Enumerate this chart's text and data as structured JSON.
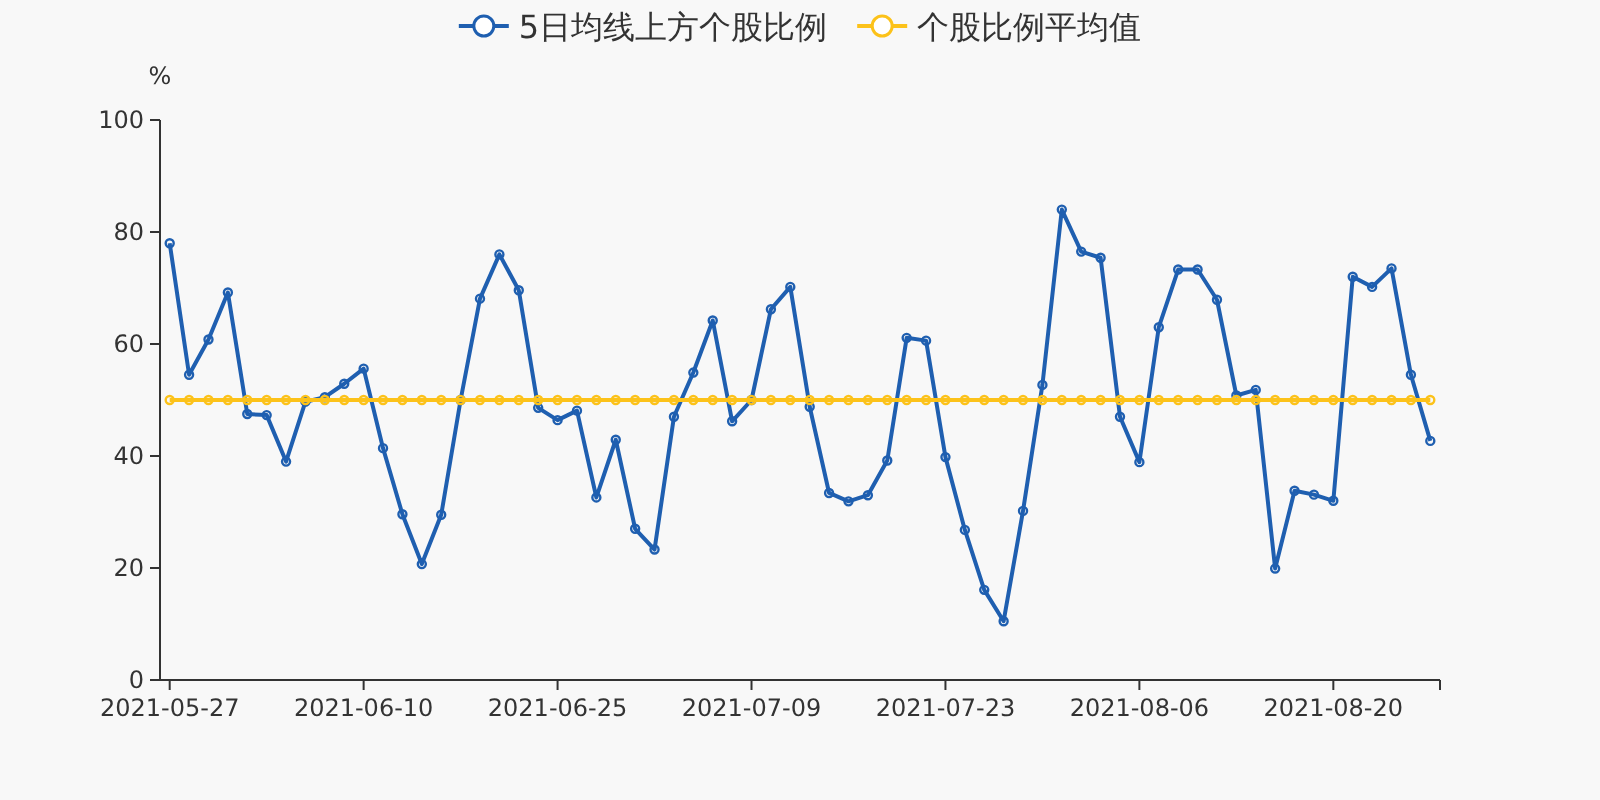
{
  "chart_data": {
    "type": "line",
    "ylabel": "%",
    "legend": "top",
    "marker": "circle",
    "grid": false,
    "categories": [
      "2021-05-27",
      null,
      null,
      null,
      null,
      null,
      null,
      null,
      null,
      null,
      "2021-06-10",
      null,
      null,
      null,
      null,
      null,
      null,
      null,
      null,
      null,
      "2021-06-25",
      null,
      null,
      null,
      null,
      null,
      null,
      null,
      null,
      null,
      "2021-07-09",
      null,
      null,
      null,
      null,
      null,
      null,
      null,
      null,
      null,
      "2021-07-23",
      null,
      null,
      null,
      null,
      null,
      null,
      null,
      null,
      null,
      "2021-08-06",
      null,
      null,
      null,
      null,
      null,
      null,
      null,
      null,
      null,
      "2021-08-20",
      null,
      null,
      null,
      null,
      null
    ],
    "ylim": [
      0,
      100
    ],
    "yticks": [
      0,
      20,
      40,
      60,
      80,
      100
    ],
    "series": [
      {
        "name": "5日均线上方个股比例",
        "color": "#1f5fb0",
        "values": [
          78.0,
          54.5,
          60.8,
          69.2,
          47.5,
          47.3,
          39.0,
          49.7,
          50.5,
          52.9,
          55.6,
          41.4,
          29.6,
          20.7,
          29.5,
          50.0,
          68.1,
          76.0,
          69.6,
          48.6,
          46.4,
          48.1,
          32.6,
          42.9,
          27.0,
          23.3,
          47.0,
          54.9,
          64.2,
          46.2,
          50.0,
          66.2,
          70.2,
          48.8,
          33.4,
          31.9,
          33.0,
          39.2,
          61.1,
          60.6,
          39.8,
          26.8,
          16.1,
          10.5,
          30.2,
          52.7,
          84.0,
          76.5,
          75.4,
          47.0,
          38.9,
          63.0,
          73.3,
          73.3,
          67.9,
          50.8,
          51.8,
          19.9,
          33.8,
          33.1,
          32.0,
          72.0,
          70.2,
          73.5,
          54.5,
          42.7
        ]
      },
      {
        "name": "个股比例平均值",
        "color": "#fcc21a",
        "values": [
          50,
          50,
          50,
          50,
          50,
          50,
          50,
          50,
          50,
          50,
          50,
          50,
          50,
          50,
          50,
          50,
          50,
          50,
          50,
          50,
          50,
          50,
          50,
          50,
          50,
          50,
          50,
          50,
          50,
          50,
          50,
          50,
          50,
          50,
          50,
          50,
          50,
          50,
          50,
          50,
          50,
          50,
          50,
          50,
          50,
          50,
          50,
          50,
          50,
          50,
          50,
          50,
          50,
          50,
          50,
          50,
          50,
          50,
          50,
          50,
          50,
          50,
          50,
          50,
          50,
          50
        ]
      }
    ]
  }
}
